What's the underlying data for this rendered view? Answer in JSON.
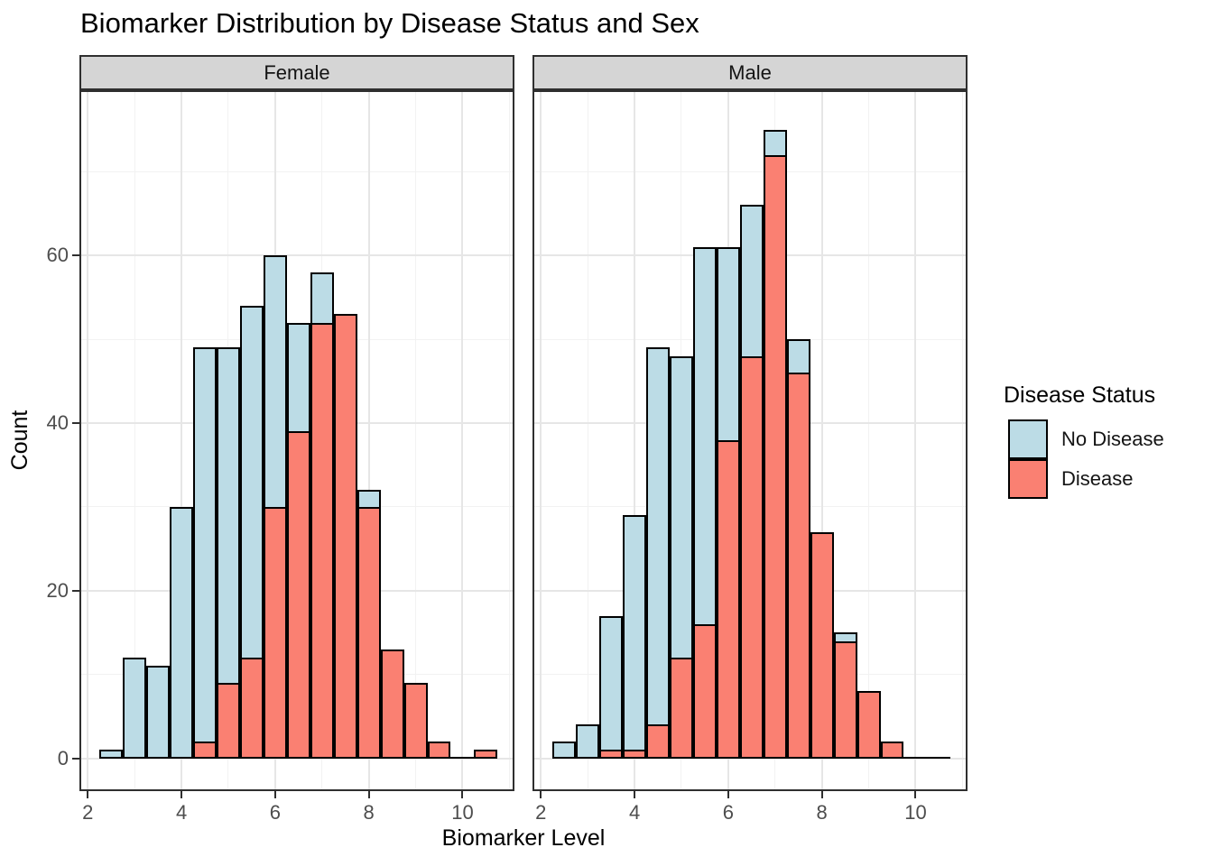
{
  "title": "Biomarker Distribution by Disease Status and Sex",
  "legend": {
    "title": "Disease Status",
    "items": [
      {
        "label": "No Disease",
        "color_key": "no_disease"
      },
      {
        "label": "Disease",
        "color_key": "disease"
      }
    ]
  },
  "colors": {
    "no_disease": "#BCDCE6",
    "disease": "#FA8072",
    "bar_outline": "#000000",
    "panel_border": "#2F2F2F",
    "strip_background": "#D5D5D5",
    "grid_major": "#E6E6E6",
    "grid_minor": "#F2F2F2",
    "tick_label": "#4D4D4D",
    "text": "#000000"
  },
  "chart_data": {
    "type": "bar",
    "subtype": "overlaid-histogram-faceted",
    "title": "Biomarker Distribution by Disease Status and Sex",
    "xlabel": "Biomarker Level",
    "ylabel": "Count",
    "x_ticks": [
      2,
      4,
      6,
      8,
      10
    ],
    "y_ticks": [
      0,
      20,
      40,
      60
    ],
    "x_minor": [
      3,
      5,
      7,
      9,
      11
    ],
    "y_minor": [
      10,
      30,
      50,
      70
    ],
    "xlim": [
      1.86,
      11.07
    ],
    "ylim": [
      -3.7,
      79.5
    ],
    "grid": true,
    "legend_position": "right",
    "binwidth": 0.5,
    "bin_centers": [
      2.5,
      3,
      3.5,
      4,
      4.5,
      5,
      5.5,
      6,
      6.5,
      7,
      7.5,
      8,
      8.5,
      9,
      9.5,
      10,
      10.5
    ],
    "facets": [
      {
        "label": "Female",
        "series": [
          {
            "name": "No Disease",
            "values": [
              1,
              12,
              11,
              30,
              49,
              49,
              54,
              60,
              52,
              58,
              null,
              32,
              null,
              null,
              null,
              null,
              null
            ]
          },
          {
            "name": "Disease",
            "values": [
              0,
              0,
              0,
              0,
              2,
              9,
              12,
              30,
              39,
              52,
              53,
              30,
              13,
              9,
              2,
              0,
              1
            ]
          }
        ]
      },
      {
        "label": "Male",
        "series": [
          {
            "name": "No Disease",
            "values": [
              2,
              4,
              17,
              29,
              49,
              48,
              61,
              61,
              66,
              75,
              50,
              null,
              15,
              null,
              null,
              0,
              0
            ]
          },
          {
            "name": "Disease",
            "values": [
              0,
              0,
              1,
              1,
              4,
              12,
              16,
              38,
              48,
              72,
              46,
              27,
              14,
              8,
              2,
              0,
              0
            ]
          }
        ]
      }
    ],
    "note": "Counts read from pixels. null = No Disease bar fully hidden behind the Disease bar (position=identity overlay)."
  }
}
